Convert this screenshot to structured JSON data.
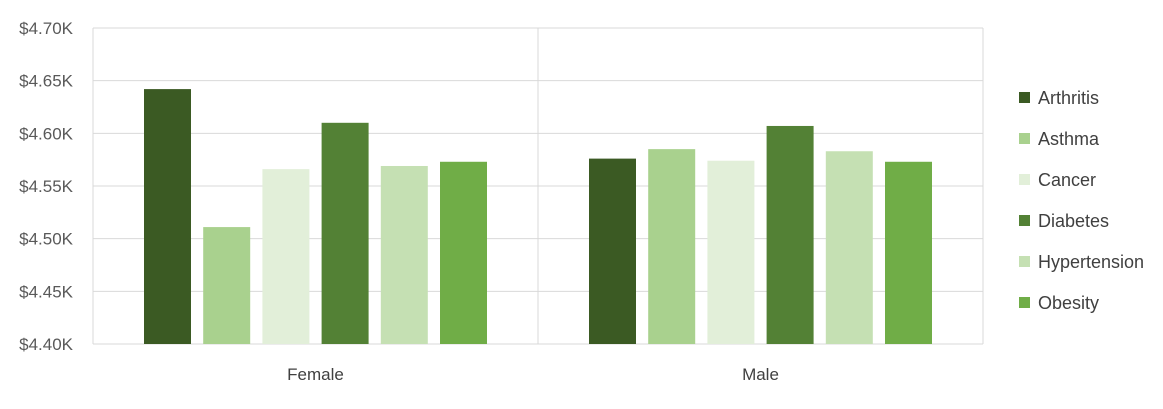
{
  "chart_data": {
    "type": "bar",
    "categories": [
      "Female",
      "Male"
    ],
    "series": [
      {
        "name": "Arthritis",
        "color": "#3b5a23",
        "values": [
          4642,
          4576
        ]
      },
      {
        "name": "Asthma",
        "color": "#a9d18e",
        "values": [
          4511,
          4585
        ]
      },
      {
        "name": "Cancer",
        "color": "#e2efd9",
        "values": [
          4566,
          4574
        ]
      },
      {
        "name": "Diabetes",
        "color": "#538135",
        "values": [
          4610,
          4607
        ]
      },
      {
        "name": "Hypertension",
        "color": "#c5e0b3",
        "values": [
          4569,
          4583
        ]
      },
      {
        "name": "Obesity",
        "color": "#70ad47",
        "values": [
          4573,
          4573
        ]
      }
    ],
    "ylim": [
      4400,
      4700
    ],
    "yticks": [
      4400,
      4450,
      4500,
      4550,
      4600,
      4650,
      4700
    ],
    "ytick_labels": [
      "$4.40K",
      "$4.45K",
      "$4.50K",
      "$4.55K",
      "$4.60K",
      "$4.65K",
      "$4.70K"
    ],
    "grid": true,
    "legend_position": "right"
  }
}
